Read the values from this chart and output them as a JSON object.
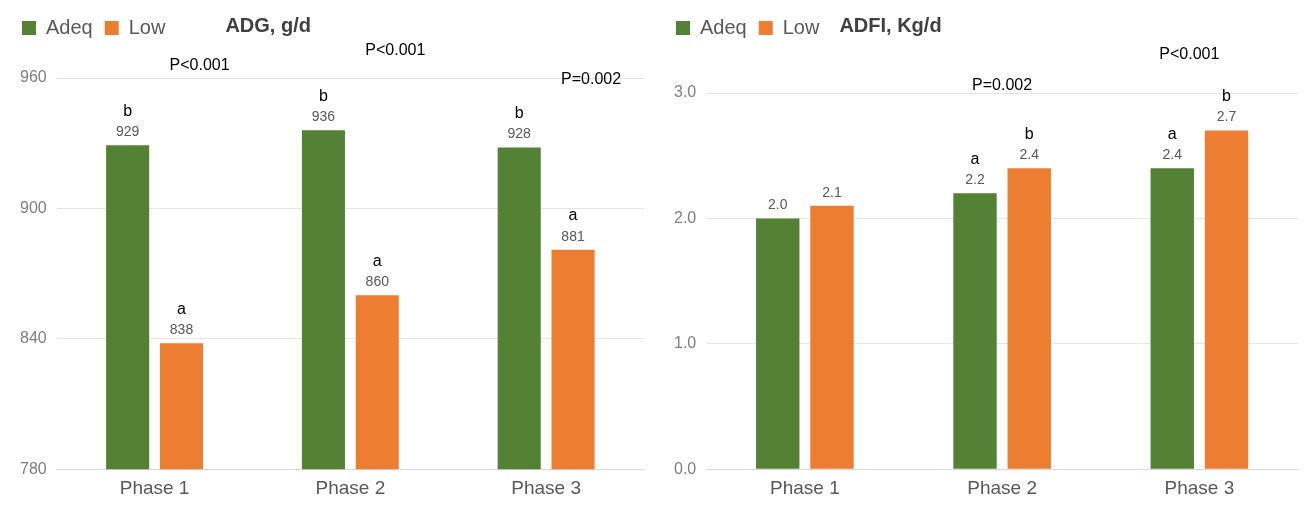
{
  "chart_data": [
    {
      "type": "bar",
      "title": "ADG, g/d",
      "categories": [
        "Phase 1",
        "Phase 2",
        "Phase 3"
      ],
      "series": [
        {
          "name": "Adeq",
          "color": "#548235",
          "values": [
            929,
            936,
            928
          ]
        },
        {
          "name": "Low",
          "color": "#ed7d31",
          "values": [
            838,
            860,
            881
          ]
        }
      ],
      "ylim": [
        780,
        960
      ],
      "yticks": [
        780,
        840,
        900,
        960
      ],
      "grid": "y",
      "legend": "top left",
      "data_labels": true,
      "annotations": [
        "b",
        "a",
        "b",
        "a",
        "b",
        "a",
        "P<0.001",
        "P<0.001",
        "P=0.002"
      ]
    },
    {
      "type": "bar",
      "title": "ADFI, Kg/d",
      "categories": [
        "Phase 1",
        "Phase 2",
        "Phase 3"
      ],
      "series": [
        {
          "name": "Adeq",
          "color": "#548235",
          "values": [
            2.0,
            2.2,
            2.4
          ],
          "value_labels": [
            "2.0",
            "2.2",
            "2.4"
          ]
        },
        {
          "name": "Low",
          "color": "#ed7d31",
          "values": [
            2.1,
            2.4,
            2.7
          ],
          "value_labels": [
            "2.1",
            "2.4",
            "2.7"
          ]
        }
      ],
      "ylim": [
        0,
        3
      ],
      "yticks": [
        {
          "value": 0,
          "label": "0.0"
        },
        {
          "value": 1,
          "label": "1.0"
        },
        {
          "value": 2,
          "label": "2.0"
        },
        {
          "value": 3,
          "label": "3.0"
        }
      ],
      "grid": "y",
      "legend": "top left",
      "annotations": [
        "a",
        "b",
        "a",
        "b",
        "P=0.002",
        "P<0.001"
      ]
    }
  ]
}
